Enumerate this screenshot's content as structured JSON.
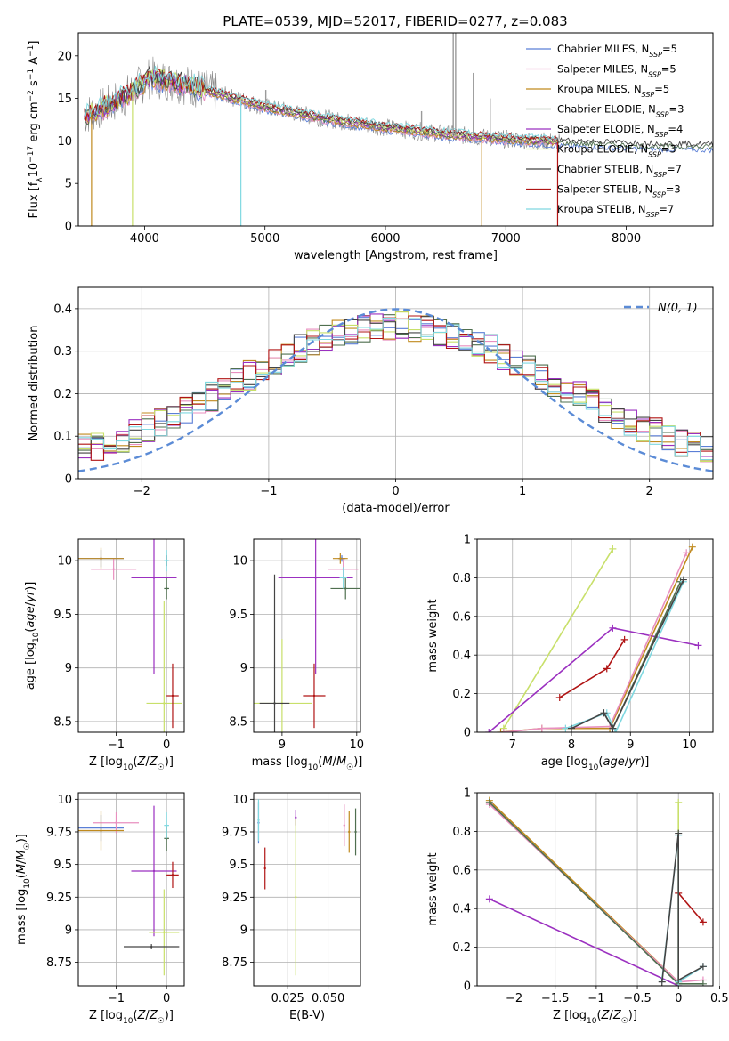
{
  "figure": {
    "title": "PLATE=0539, MJD=52017, FIBERID=0277, z=0.083"
  },
  "colors": {
    "Chabrier MILES": "#5b7fd6",
    "Salpeter MILES": "#e88fbf",
    "Kroupa MILES": "#c08a1e",
    "Chabrier ELODIE": "#4f6f4f",
    "Salpeter ELODIE": "#9b30c0",
    "Kroupa ELODIE": "#c8e06a",
    "Chabrier STELIB": "#444444",
    "Salpeter STELIB": "#b01414",
    "Kroupa STELIB": "#7fd8e0",
    "obs": "#888888",
    "gauss": "#5b8bd6"
  },
  "chart_data": [
    {
      "id": "spectrum",
      "type": "line",
      "xlabel": "wavelength [Angstrom, rest frame]",
      "ylabel": "Flux [f_λ 10^-17 erg cm^-2 s^-1 A^-1]",
      "xlim": [
        3450,
        8720
      ],
      "ylim": [
        0,
        22.7
      ],
      "xticks": [
        4000,
        5000,
        6000,
        7000,
        8000
      ],
      "yticks": [
        0,
        5,
        10,
        15,
        20
      ],
      "grid": false,
      "legend_position": "top-right",
      "legend": [
        {
          "model": "Chabrier MILES",
          "nssp": "5"
        },
        {
          "model": "Salpeter MILES",
          "nssp": "5"
        },
        {
          "model": "Kroupa MILES",
          "nssp": "5"
        },
        {
          "model": "Chabrier ELODIE",
          "nssp": "3"
        },
        {
          "model": "Salpeter ELODIE",
          "nssp": "4"
        },
        {
          "model": "Kroupa ELODIE",
          "nssp": "3"
        },
        {
          "model": "Chabrier STELIB",
          "nssp": "7"
        },
        {
          "model": "Salpeter STELIB",
          "nssp": "3"
        },
        {
          "model": "Kroupa STELIB",
          "nssp": "7"
        }
      ],
      "continuum": [
        [
          3500,
          13
        ],
        [
          3700,
          14.2
        ],
        [
          3900,
          15.8
        ],
        [
          4050,
          17.5
        ],
        [
          4300,
          16.8
        ],
        [
          4600,
          15.6
        ],
        [
          5000,
          14
        ],
        [
          5500,
          12.6
        ],
        [
          6000,
          11.6
        ],
        [
          6500,
          10.8
        ],
        [
          7000,
          10.2
        ],
        [
          7400,
          9.9
        ],
        [
          7800,
          9.7
        ],
        [
          8200,
          9.5
        ],
        [
          8700,
          9.4
        ]
      ],
      "dips": [
        [
          3560,
          0
        ],
        [
          3900,
          0
        ],
        [
          4800,
          0
        ],
        [
          6800,
          0
        ],
        [
          7430,
          0
        ]
      ]
    },
    {
      "id": "residual-hist",
      "type": "line",
      "xlabel": "(data-model)/error",
      "ylabel": "Normed distribution",
      "xlim": [
        -2.5,
        2.5
      ],
      "ylim": [
        0,
        0.45
      ],
      "xticks": [
        -2,
        -1,
        0,
        1,
        2
      ],
      "yticks": [
        0.0,
        0.1,
        0.2,
        0.3,
        0.4
      ],
      "grid": true,
      "legend_position": "top-right",
      "legend": [
        {
          "label": "N(0, 1)"
        }
      ]
    },
    {
      "id": "age-vs-z",
      "type": "scatter",
      "xlabel": "Z [log10(Z/Z☉)]",
      "ylabel": "age [log10(age/yr)]",
      "xlim": [
        -1.75,
        0.35
      ],
      "ylim": [
        8.4,
        10.2
      ],
      "xticks": [
        -1,
        0
      ],
      "yticks": [
        8.5,
        9.0,
        9.5,
        10.0
      ],
      "grid": true,
      "points": [
        {
          "model": "Chabrier MILES",
          "x": -1.3,
          "y": 10.02,
          "xerr": 0.45,
          "yerr": 0.08
        },
        {
          "model": "Salpeter MILES",
          "x": -1.05,
          "y": 9.92,
          "xerr": 0.45,
          "yerr": 0.1
        },
        {
          "model": "Kroupa MILES",
          "x": -1.3,
          "y": 10.02,
          "xerr": 0.45,
          "yerr": 0.1
        },
        {
          "model": "Chabrier ELODIE",
          "x": 0.0,
          "y": 9.74,
          "xerr": 0.05,
          "yerr": 0.1
        },
        {
          "model": "Salpeter ELODIE",
          "x": -0.25,
          "y": 9.84,
          "xerr": 0.45,
          "yerr": 0.9
        },
        {
          "model": "Kroupa ELODIE",
          "x": -0.05,
          "y": 8.67,
          "xerr": 0.35,
          "yerr": 0.95
        },
        {
          "model": "Chabrier STELIB",
          "x": 0.0,
          "y": 10.0,
          "xerr": 0.02,
          "yerr": 0.05
        },
        {
          "model": "Salpeter STELIB",
          "x": 0.12,
          "y": 8.74,
          "xerr": 0.12,
          "yerr": 0.3
        },
        {
          "model": "Kroupa STELIB",
          "x": 0.0,
          "y": 10.0,
          "xerr": 0.05,
          "yerr": 0.1
        }
      ]
    },
    {
      "id": "age-vs-mass",
      "type": "scatter",
      "xlabel": "mass [log10(M/M☉)]",
      "ylabel": "",
      "xlim": [
        8.62,
        10.05
      ],
      "ylim": [
        8.4,
        10.2
      ],
      "xticks": [
        9,
        10
      ],
      "yticks": [
        8.5,
        9.0,
        9.5,
        10.0
      ],
      "grid": true,
      "points": [
        {
          "model": "Chabrier MILES",
          "x": 9.8,
          "y": 10.02,
          "xerr": 0.05,
          "yerr": 0.03
        },
        {
          "model": "Salpeter MILES",
          "x": 9.82,
          "y": 9.92,
          "xerr": 0.2,
          "yerr": 0.1
        },
        {
          "model": "Kroupa MILES",
          "x": 9.78,
          "y": 10.02,
          "xerr": 0.1,
          "yerr": 0.05
        },
        {
          "model": "Chabrier ELODIE",
          "x": 9.85,
          "y": 9.74,
          "xerr": 0.2,
          "yerr": 0.1
        },
        {
          "model": "Salpeter ELODIE",
          "x": 9.45,
          "y": 9.84,
          "xerr": 0.5,
          "yerr": 0.9
        },
        {
          "model": "Kroupa ELODIE",
          "x": 9.0,
          "y": 8.67,
          "xerr": 0.4,
          "yerr": 0.6
        },
        {
          "model": "Chabrier STELIB",
          "x": 8.9,
          "y": 8.67,
          "xerr": 0.2,
          "yerr": 1.2
        },
        {
          "model": "Salpeter STELIB",
          "x": 9.43,
          "y": 8.74,
          "xerr": 0.15,
          "yerr": 0.3
        },
        {
          "model": "Kroupa STELIB",
          "x": 9.82,
          "y": 9.84,
          "xerr": 0.05,
          "yerr": 0.1
        }
      ]
    },
    {
      "id": "massweight-vs-age",
      "type": "line",
      "xlabel": "age [log10(age/yr)]",
      "ylabel": "mass weight",
      "xlim": [
        6.4,
        10.4
      ],
      "ylim": [
        0,
        1
      ],
      "xticks": [
        7,
        8,
        9,
        10
      ],
      "yticks": [
        0.0,
        0.2,
        0.4,
        0.6,
        0.8,
        1.0
      ],
      "grid": true,
      "series": [
        {
          "model": "Kroupa ELODIE",
          "points": [
            [
              6.85,
              0.02
            ],
            [
              8.7,
              0.95
            ]
          ]
        },
        {
          "model": "Salpeter ELODIE",
          "points": [
            [
              6.6,
              0.0
            ],
            [
              8.7,
              0.54
            ],
            [
              10.15,
              0.45
            ]
          ]
        },
        {
          "model": "Salpeter STELIB",
          "points": [
            [
              7.8,
              0.18
            ],
            [
              8.6,
              0.33
            ],
            [
              8.9,
              0.48
            ]
          ]
        },
        {
          "model": "Kroupa MILES",
          "points": [
            [
              6.8,
              0.0
            ],
            [
              7.5,
              0.02
            ],
            [
              8.65,
              0.02
            ],
            [
              10.05,
              0.96
            ]
          ]
        },
        {
          "model": "Salpeter MILES",
          "points": [
            [
              6.85,
              0.0
            ],
            [
              7.5,
              0.02
            ],
            [
              8.65,
              0.03
            ],
            [
              9.95,
              0.93
            ]
          ]
        },
        {
          "model": "Chabrier ELODIE",
          "points": [
            [
              8.55,
              0.1
            ],
            [
              8.7,
              0.02
            ],
            [
              9.85,
              0.78
            ]
          ]
        },
        {
          "model": "Kroupa STELIB",
          "points": [
            [
              7.9,
              0.02
            ],
            [
              8.6,
              0.1
            ],
            [
              8.75,
              0.0
            ],
            [
              9.9,
              0.78
            ]
          ]
        },
        {
          "model": "Chabrier STELIB",
          "points": [
            [
              8.0,
              0.02
            ],
            [
              8.55,
              0.1
            ],
            [
              8.7,
              0.02
            ],
            [
              9.9,
              0.79
            ]
          ]
        }
      ]
    },
    {
      "id": "mass-vs-z",
      "type": "scatter",
      "xlabel": "Z [log10(Z/Z☉)]",
      "ylabel": "mass [log10(M/M☉)]",
      "xlim": [
        -1.75,
        0.35
      ],
      "ylim": [
        8.57,
        10.05
      ],
      "xticks": [
        -1,
        0
      ],
      "yticks": [
        8.75,
        9.0,
        9.25,
        9.5,
        9.75,
        10.0
      ],
      "grid": true,
      "points": [
        {
          "model": "Chabrier MILES",
          "x": -1.3,
          "y": 9.78,
          "xerr": 0.45,
          "yerr": 0.1
        },
        {
          "model": "Salpeter MILES",
          "x": -1.0,
          "y": 9.82,
          "xerr": 0.45,
          "yerr": 0.08
        },
        {
          "model": "Kroupa MILES",
          "x": -1.3,
          "y": 9.76,
          "xerr": 0.45,
          "yerr": 0.15
        },
        {
          "model": "Chabrier ELODIE",
          "x": 0.0,
          "y": 9.7,
          "xerr": 0.05,
          "yerr": 0.1
        },
        {
          "model": "Salpeter ELODIE",
          "x": -0.25,
          "y": 9.45,
          "xerr": 0.45,
          "yerr": 0.5
        },
        {
          "model": "Kroupa ELODIE",
          "x": -0.05,
          "y": 8.98,
          "xerr": 0.3,
          "yerr": 0.33
        },
        {
          "model": "Chabrier STELIB",
          "x": -0.3,
          "y": 8.87,
          "xerr": 0.55,
          "yerr": 0.02
        },
        {
          "model": "Salpeter STELIB",
          "x": 0.12,
          "y": 9.42,
          "xerr": 0.12,
          "yerr": 0.1
        },
        {
          "model": "Kroupa STELIB",
          "x": 0.0,
          "y": 9.8,
          "xerr": 0.05,
          "yerr": 0.1
        }
      ]
    },
    {
      "id": "mass-vs-ebv",
      "type": "scatter",
      "xlabel": "E(B-V)",
      "ylabel": "",
      "xlim": [
        0.004,
        0.07
      ],
      "ylim": [
        8.57,
        10.05
      ],
      "xticks": [
        0.025,
        0.05
      ],
      "xticklabels": [
        "0.025",
        "0.050"
      ],
      "yticks": [
        8.75,
        9.0,
        9.25,
        9.5,
        9.75,
        10.0
      ],
      "grid": true,
      "points": [
        {
          "model": "Chabrier MILES",
          "x": 0.007,
          "y": 9.82,
          "xerr": 0,
          "yerr": 0.16
        },
        {
          "model": "Kroupa STELIB",
          "x": 0.007,
          "y": 9.84,
          "xerr": 0,
          "yerr": 0.16
        },
        {
          "model": "Salpeter STELIB",
          "x": 0.011,
          "y": 9.47,
          "xerr": 0,
          "yerr": 0.16
        },
        {
          "model": "Salpeter ELODIE",
          "x": 0.03,
          "y": 9.86,
          "xerr": 0,
          "yerr": 0.06
        },
        {
          "model": "Kroupa ELODIE",
          "x": 0.03,
          "y": 9.25,
          "xerr": 0,
          "yerr": 0.6
        },
        {
          "model": "Salpeter MILES",
          "x": 0.06,
          "y": 9.8,
          "xerr": 0,
          "yerr": 0.16
        },
        {
          "model": "Kroupa MILES",
          "x": 0.063,
          "y": 9.75,
          "xerr": 0,
          "yerr": 0.16
        },
        {
          "model": "Chabrier ELODIE",
          "x": 0.067,
          "y": 9.75,
          "xerr": 0,
          "yerr": 0.18
        }
      ]
    },
    {
      "id": "massweight-vs-z",
      "type": "line",
      "xlabel": "Z [log10(Z/Z☉)]",
      "ylabel": "mass weight",
      "xlim": [
        -2.45,
        0.42
      ],
      "ylim": [
        0,
        1
      ],
      "xticks": [
        -2.0,
        -1.5,
        -1.0,
        -0.5,
        0.0,
        0.5
      ],
      "yticks": [
        0.0,
        0.2,
        0.4,
        0.6,
        0.8,
        1.0
      ],
      "grid": true,
      "series": [
        {
          "model": "Salpeter ELODIE",
          "points": [
            [
              -2.3,
              0.45
            ],
            [
              0.0,
              0.0
            ]
          ]
        },
        {
          "model": "Kroupa MILES",
          "points": [
            [
              -2.3,
              0.96
            ],
            [
              0.0,
              0.02
            ]
          ]
        },
        {
          "model": "Salpeter MILES",
          "points": [
            [
              -2.3,
              0.94
            ],
            [
              0.0,
              0.02
            ],
            [
              0.3,
              0.03
            ]
          ]
        },
        {
          "model": "Chabrier ELODIE",
          "points": [
            [
              -2.3,
              0.95
            ],
            [
              0.0,
              0.01
            ],
            [
              0.3,
              0.01
            ]
          ]
        },
        {
          "model": "Salpeter STELIB",
          "points": [
            [
              0.0,
              0.48
            ],
            [
              0.3,
              0.33
            ]
          ]
        },
        {
          "model": "Kroupa ELODIE",
          "points": [
            [
              0.0,
              0.95
            ],
            [
              0.0,
              0.02
            ]
          ]
        },
        {
          "model": "Kroupa STELIB",
          "points": [
            [
              -0.2,
              0.03
            ],
            [
              0.0,
              0.78
            ],
            [
              0.0,
              0.02
            ],
            [
              0.3,
              0.1
            ]
          ]
        },
        {
          "model": "Chabrier STELIB",
          "points": [
            [
              -0.2,
              0.02
            ],
            [
              0.0,
              0.79
            ],
            [
              0.0,
              0.03
            ],
            [
              0.3,
              0.1
            ]
          ]
        }
      ]
    }
  ]
}
